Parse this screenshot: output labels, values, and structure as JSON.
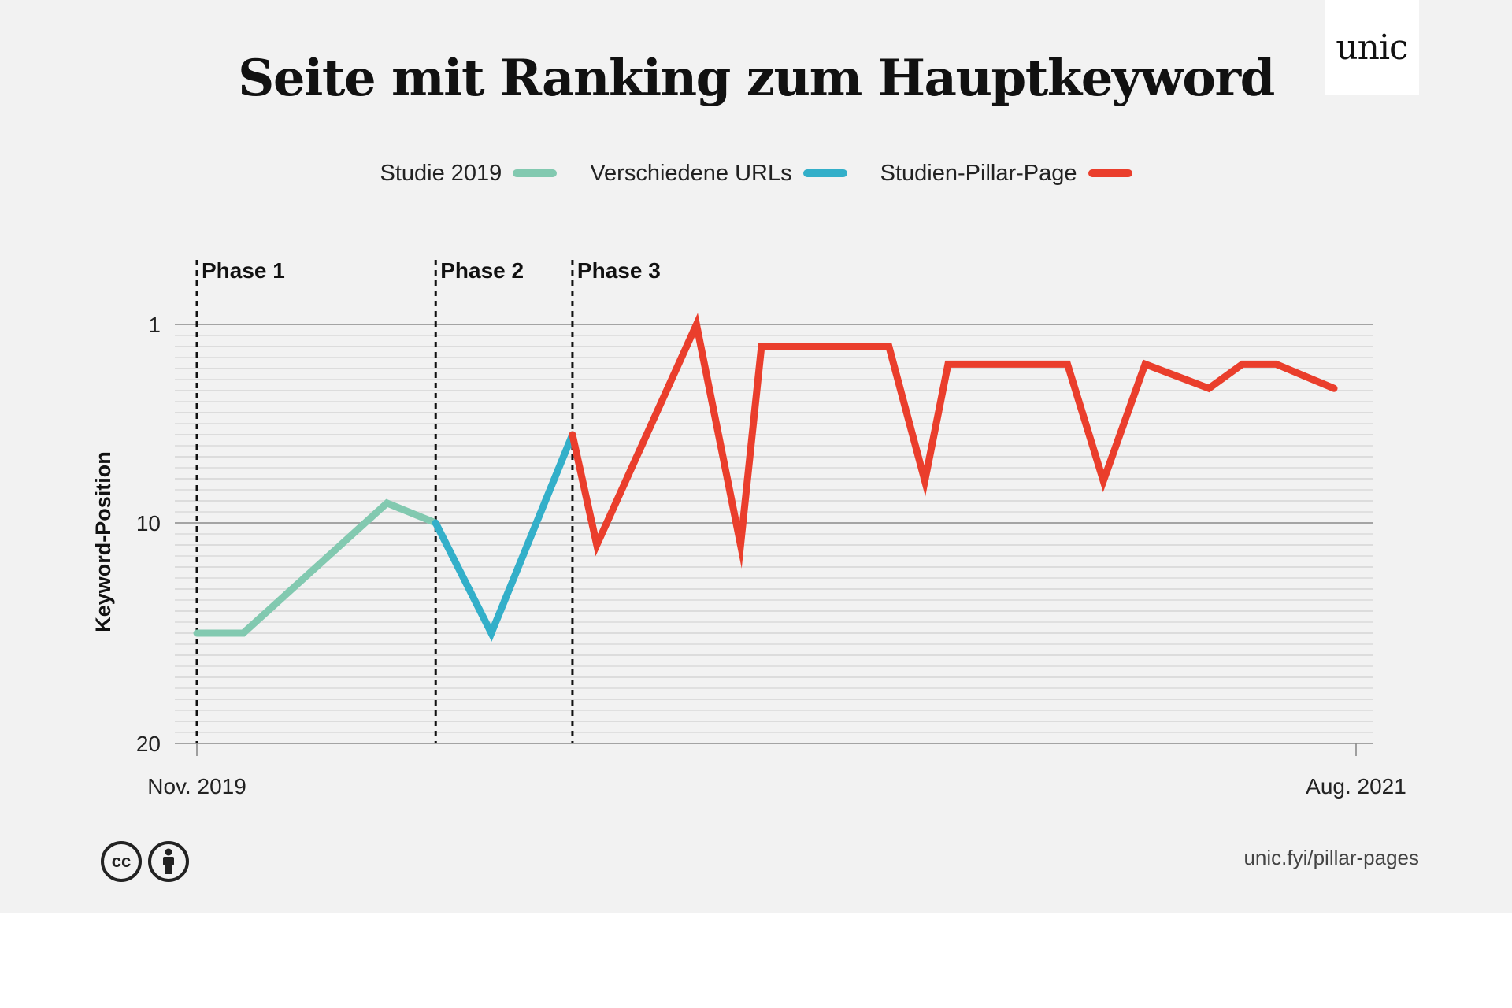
{
  "header": {
    "title": "Seite mit Ranking zum Hauptkeyword",
    "logo_text": "unic"
  },
  "footer": {
    "url": "unic.fyi/pillar-pages",
    "license_icons": [
      "creative-commons-icon",
      "attribution-icon"
    ],
    "cc_glyph": "cc"
  },
  "colors": {
    "background": "#f2f2f2",
    "studie": "#82c9b0",
    "urls": "#33afc9",
    "pillar": "#ea3e2c"
  },
  "chart_data": {
    "type": "line",
    "title": "Seite mit Ranking zum Hauptkeyword",
    "xlabel": "",
    "ylabel": "Keyword-Position",
    "ylim": [
      1,
      20
    ],
    "y_inverted": true,
    "yticks": [
      1,
      10,
      20
    ],
    "xlim": [
      0,
      100
    ],
    "xtick_labels": [
      {
        "x": 0,
        "label": "Nov. 2019"
      },
      {
        "x": 100,
        "label": "Aug. 2021"
      }
    ],
    "grid": true,
    "legend_position": "top-center",
    "phases": [
      {
        "x": 0,
        "label": "Phase 1"
      },
      {
        "x": 20.6,
        "label": "Phase 2"
      },
      {
        "x": 32.4,
        "label": "Phase 3"
      }
    ],
    "series": [
      {
        "name": "Studie 2019",
        "color": "#82c9b0",
        "points": [
          [
            0,
            15
          ],
          [
            4.0,
            15
          ],
          [
            16.4,
            9.1
          ],
          [
            20.6,
            10
          ]
        ]
      },
      {
        "name": "Verschiedene URLs",
        "color": "#33afc9",
        "points": [
          [
            20.6,
            10
          ],
          [
            25.4,
            15
          ],
          [
            32.4,
            6
          ]
        ]
      },
      {
        "name": "Studien-Pillar-Page",
        "color": "#ea3e2c",
        "points": [
          [
            32.4,
            6
          ],
          [
            34.5,
            11
          ],
          [
            43.1,
            1
          ],
          [
            46.9,
            11
          ],
          [
            48.7,
            2
          ],
          [
            59.7,
            2
          ],
          [
            62.8,
            8.1
          ],
          [
            64.8,
            2.8
          ],
          [
            75.1,
            2.8
          ],
          [
            78.2,
            8.1
          ],
          [
            81.8,
            2.8
          ],
          [
            87.3,
            3.9
          ],
          [
            90.2,
            2.8
          ],
          [
            93.1,
            2.8
          ],
          [
            98.1,
            3.9
          ]
        ]
      }
    ]
  }
}
